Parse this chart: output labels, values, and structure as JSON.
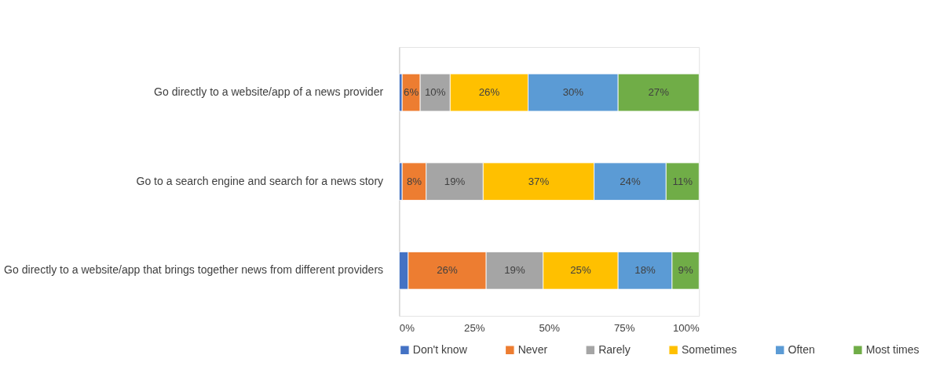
{
  "chart_data": {
    "type": "bar",
    "orientation": "horizontal",
    "stacked": true,
    "categories": [
      "Go directly to a website/app of a news provider",
      "Go to a search engine and search for a news story",
      "Go directly to a website/app that brings together news from different providers"
    ],
    "series": [
      {
        "name": "Don't know",
        "color": "#4472c4",
        "values": [
          1,
          1,
          3
        ],
        "value_labels": [
          null,
          null,
          null
        ]
      },
      {
        "name": "Never",
        "color": "#ed7d31",
        "values": [
          6,
          8,
          26
        ],
        "value_labels": [
          "6%",
          "8%",
          "26%"
        ]
      },
      {
        "name": "Rarely",
        "color": "#a5a5a5",
        "values": [
          10,
          19,
          19
        ],
        "value_labels": [
          "10%",
          "19%",
          "19%"
        ]
      },
      {
        "name": "Sometimes",
        "color": "#ffc000",
        "values": [
          26,
          37,
          25
        ],
        "value_labels": [
          "26%",
          "37%",
          "25%"
        ]
      },
      {
        "name": "Often",
        "color": "#5b9bd5",
        "values": [
          30,
          24,
          18
        ],
        "value_labels": [
          "30%",
          "24%",
          "18%"
        ]
      },
      {
        "name": "Most times",
        "color": "#70ad47",
        "values": [
          27,
          11,
          9
        ],
        "value_labels": [
          "27%",
          "11%",
          "9%"
        ]
      }
    ],
    "xlim": [
      0,
      100
    ],
    "xticks": [
      {
        "value": 0,
        "label": "0%"
      },
      {
        "value": 25,
        "label": "25%"
      },
      {
        "value": 50,
        "label": "50%"
      },
      {
        "value": 75,
        "label": "75%"
      },
      {
        "value": 100,
        "label": "100%"
      }
    ],
    "grid": false,
    "legend": "bottom"
  }
}
